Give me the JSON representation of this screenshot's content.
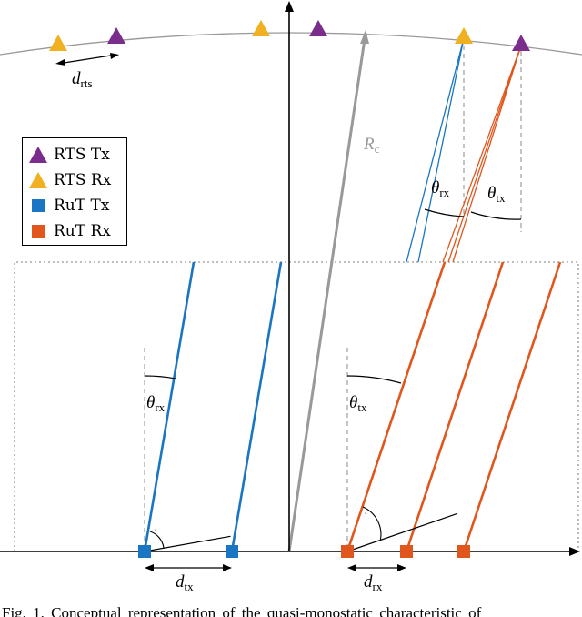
{
  "legend": {
    "items": [
      {
        "label": "RTS  Tx",
        "color": "#7b2d8e",
        "shape": "triangle"
      },
      {
        "label": "RTS  Rx",
        "color": "#f0b020",
        "shape": "triangle"
      },
      {
        "label": "RuT  Tx",
        "color": "#1a75c2",
        "shape": "square"
      },
      {
        "label": "RuT  Rx",
        "color": "#e0561c",
        "shape": "square"
      }
    ]
  },
  "labels": {
    "d_rts": {
      "main": "d",
      "sub": "rts"
    },
    "R_c": {
      "main": "R",
      "sub": "c"
    },
    "theta_rx_top": {
      "main": "θ",
      "sub": "rx"
    },
    "theta_tx_top": {
      "main": "θ",
      "sub": "tx"
    },
    "theta_rx_left": {
      "main": "θ",
      "sub": "rx"
    },
    "theta_tx_right": {
      "main": "θ",
      "sub": "tx"
    },
    "d_tx": {
      "main": "d",
      "sub": "tx"
    },
    "d_rx": {
      "main": "d",
      "sub": "rx"
    },
    "right_angle_dot": "·"
  },
  "colors": {
    "rts_tx": "#7b2d8e",
    "rts_rx": "#f0b020",
    "rut_tx": "#1a75c2",
    "rut_rx": "#e0561c",
    "radius": "#999999",
    "guide": "#888888"
  },
  "caption": "Fig.  1.   Conceptual  representation  of  the  quasi-monostatic  characteristic  of"
}
